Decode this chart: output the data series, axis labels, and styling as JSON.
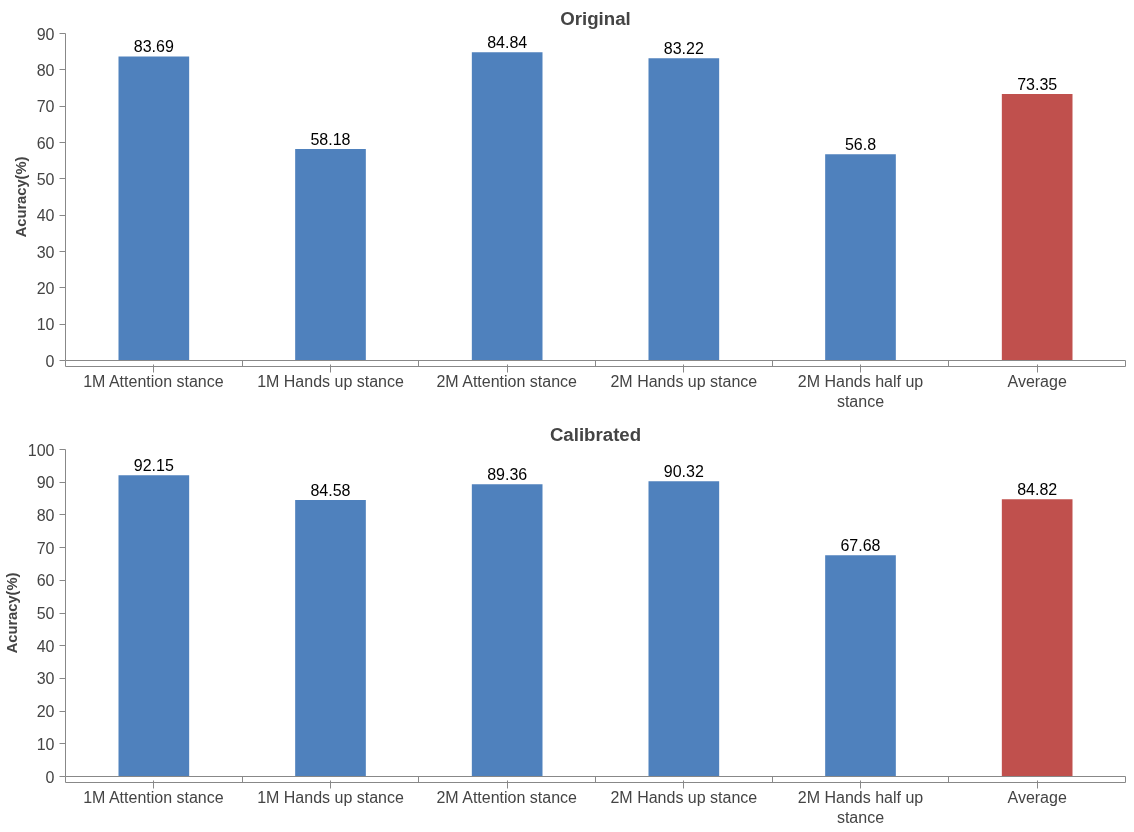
{
  "chart_data": [
    {
      "type": "bar",
      "title": "Original",
      "ylabel": "Acuracy(%)",
      "categories": [
        "1M Attention stance",
        "1M Hands up stance",
        "2M Attention stance",
        "2M Hands up stance",
        "2M Hands half up stance",
        "Average"
      ],
      "values": [
        83.69,
        58.18,
        84.84,
        83.22,
        56.8,
        73.35
      ],
      "colors": [
        "#4f81bd",
        "#4f81bd",
        "#4f81bd",
        "#4f81bd",
        "#4f81bd",
        "#c0504d"
      ],
      "ylim": [
        0,
        90
      ],
      "yticks": [
        0,
        10,
        20,
        30,
        40,
        50,
        60,
        70,
        80,
        90
      ],
      "data_labels": true,
      "grid": false
    },
    {
      "type": "bar",
      "title": "Calibrated",
      "ylabel": "Acuracy(%)",
      "categories": [
        "1M Attention stance",
        "1M Hands up stance",
        "2M Attention stance",
        "2M Hands up stance",
        "2M Hands half up stance",
        "Average"
      ],
      "values": [
        92.15,
        84.58,
        89.36,
        90.32,
        67.68,
        84.82
      ],
      "colors": [
        "#4f81bd",
        "#4f81bd",
        "#4f81bd",
        "#4f81bd",
        "#4f81bd",
        "#c0504d"
      ],
      "ylim": [
        0,
        100
      ],
      "yticks": [
        0,
        10,
        20,
        30,
        40,
        50,
        60,
        70,
        80,
        90,
        100
      ],
      "data_labels": true,
      "grid": false
    }
  ]
}
